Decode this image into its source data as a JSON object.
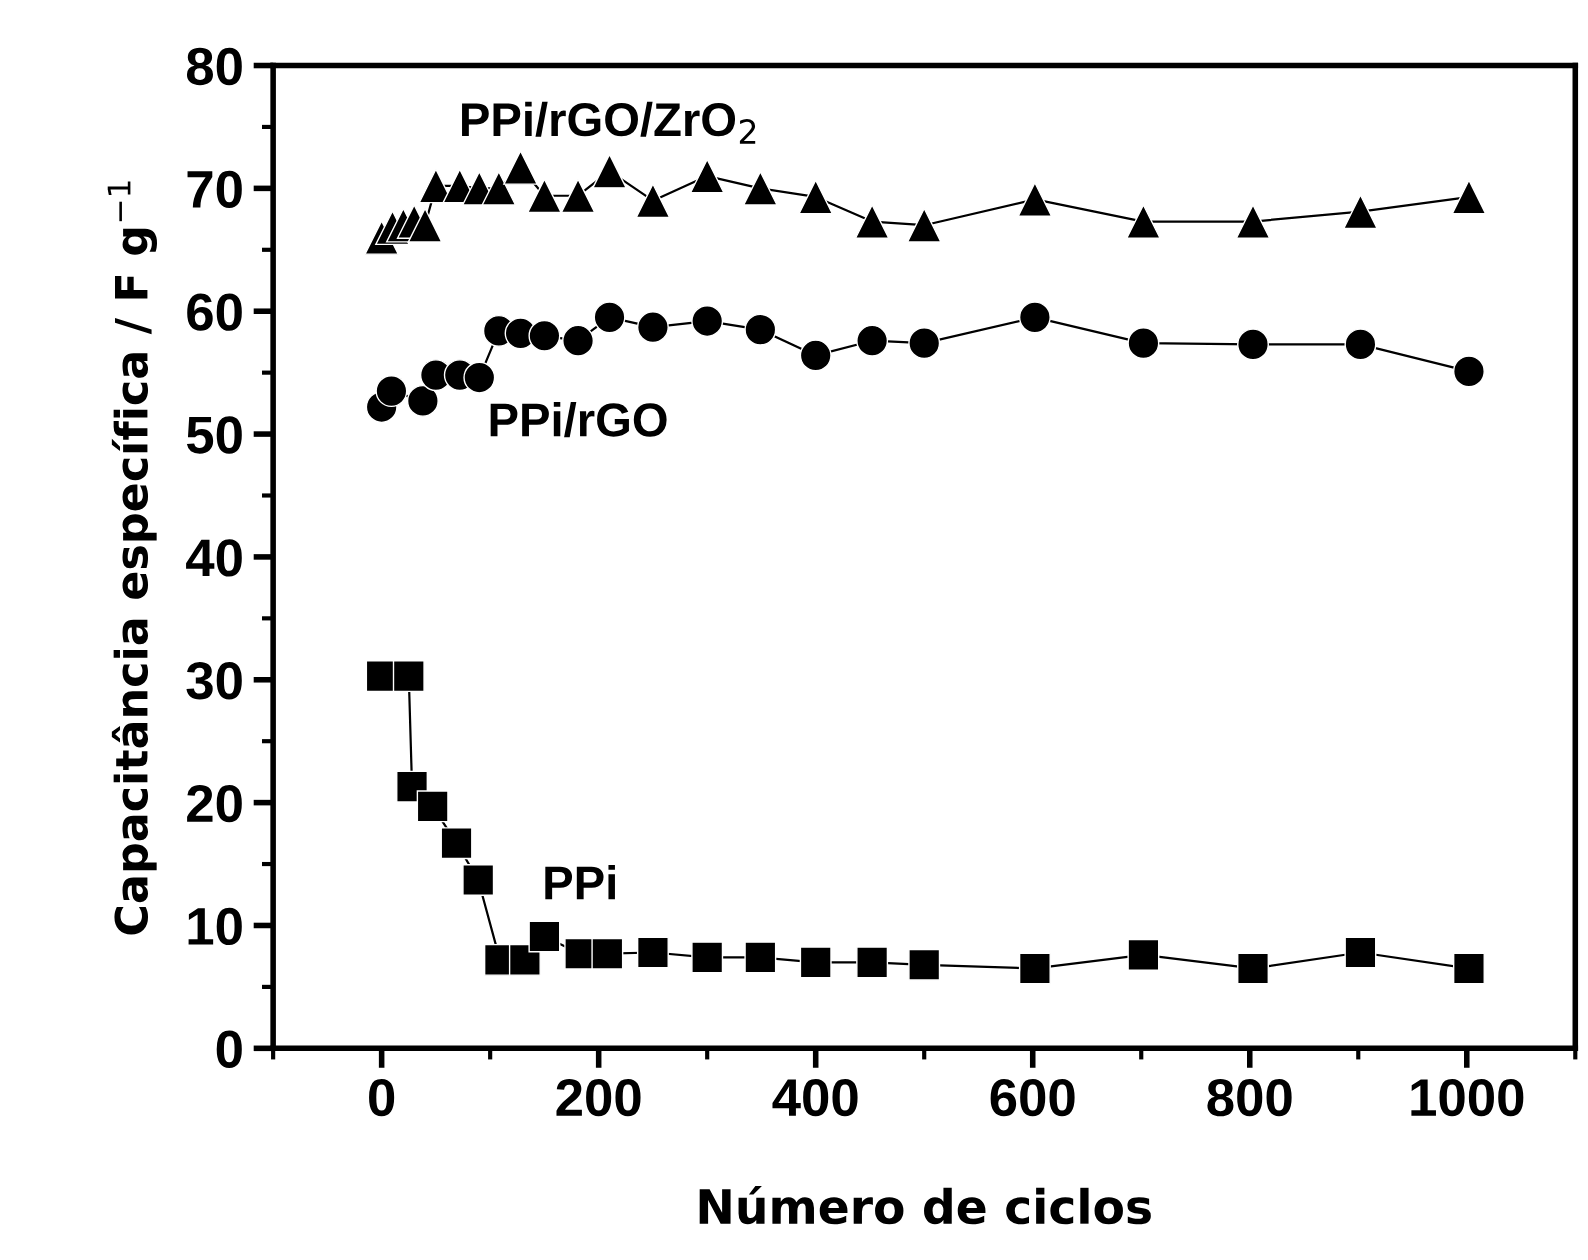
{
  "chart_data": {
    "type": "line",
    "xlabel": "Número de ciclos",
    "ylabel": "Capacitância específica / F g$^{−1}$",
    "xlim": [
      -100,
      1100
    ],
    "xticks": [
      0,
      200,
      400,
      600,
      800,
      1000
    ],
    "ylim": [
      0,
      80
    ],
    "yticks": [
      0,
      10,
      20,
      30,
      40,
      50,
      60,
      70,
      80
    ],
    "grid": false,
    "legend": false,
    "line_style": "solid",
    "series": [
      {
        "name": "PPi/rGO/ZrO$_{2}$",
        "color": "#000000",
        "marker": "triangle",
        "x": [
          0,
          10,
          20,
          30,
          40,
          50,
          72,
          90,
          108,
          128,
          150,
          181,
          210,
          250,
          300,
          349,
          400,
          452,
          500,
          602,
          702,
          803,
          902,
          1002
        ],
        "values": [
          66,
          66.8,
          67,
          67.3,
          67,
          70.2,
          70.2,
          70,
          70,
          71.7,
          69.4,
          69.4,
          71.4,
          69,
          71,
          70,
          69.3,
          67.3,
          67,
          69.1,
          67.3,
          67.3,
          68.1,
          69.3
        ]
      },
      {
        "name": "PPi/rGO",
        "color": "#000000",
        "marker": "circle",
        "x": [
          0,
          9,
          38,
          50,
          72,
          90,
          108,
          128,
          150,
          181,
          210,
          250,
          300,
          349,
          400,
          452,
          500,
          602,
          702,
          803,
          902,
          1002
        ],
        "values": [
          52.2,
          53.5,
          52.7,
          54.8,
          54.8,
          54.6,
          58.4,
          58.2,
          58,
          57.6,
          59.5,
          58.7,
          59.2,
          58.5,
          56.4,
          57.6,
          57.4,
          59.5,
          57.4,
          57.3,
          57.3,
          55.1
        ]
      },
      {
        "name": "PPi",
        "color": "#000000",
        "marker": "square",
        "x": [
          0,
          15,
          25,
          28,
          47,
          69,
          89,
          109,
          132,
          150,
          183,
          208,
          250,
          300,
          349,
          400,
          452,
          500,
          602,
          702,
          803,
          902,
          1002
        ],
        "values": [
          30.3,
          null,
          30.3,
          21.3,
          19.7,
          16.7,
          13.7,
          7.2,
          7.2,
          9.1,
          7.7,
          7.7,
          7.8,
          7.4,
          7.4,
          7.0,
          7.0,
          6.8,
          6.5,
          7.6,
          6.5,
          7.8,
          6.5
        ]
      }
    ]
  }
}
